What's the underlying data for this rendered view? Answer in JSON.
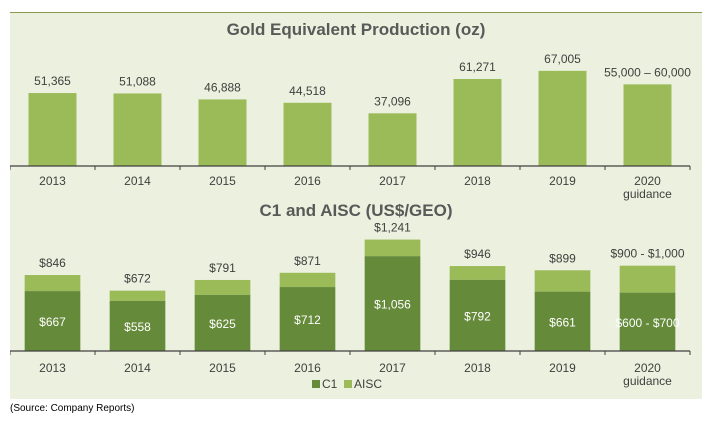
{
  "chart_data": [
    {
      "type": "bar",
      "title": "Gold Equivalent Production (oz)",
      "categories": [
        "2013",
        "2014",
        "2015",
        "2016",
        "2017",
        "2018",
        "2019",
        "2020|guidance"
      ],
      "values": [
        51365,
        51088,
        46888,
        44518,
        37096,
        61271,
        67005,
        57500
      ],
      "value_labels": [
        "51,365",
        "51,088",
        "46,888",
        "44,518",
        "37,096",
        "61,271",
        "67,005",
        "55,000 – 60,000"
      ],
      "color": "#9BBB59"
    },
    {
      "type": "bar",
      "stacked": true,
      "title": "C1 and AISC (US$/GEO)",
      "categories": [
        "2013",
        "2014",
        "2015",
        "2016",
        "2017",
        "2018",
        "2019",
        "2020|guidance"
      ],
      "series": [
        {
          "name": "C1",
          "values": [
            667,
            558,
            625,
            712,
            1056,
            792,
            661,
            650
          ],
          "labels": [
            "$667",
            "$558",
            "$625",
            "$712",
            "$1,056",
            "$792",
            "$661",
            "$600 - $700"
          ],
          "color": "#658A3A"
        },
        {
          "name": "AISC",
          "values": [
            846,
            672,
            791,
            871,
            1241,
            946,
            899,
            950
          ],
          "labels": [
            "$846",
            "$672",
            "$791",
            "$871",
            "$1,241",
            "$946",
            "$899",
            "$900 - $1,000"
          ],
          "color": "#9BBB59"
        }
      ],
      "legend": "bottom-center"
    }
  ],
  "source": "(Source: Company Reports)"
}
